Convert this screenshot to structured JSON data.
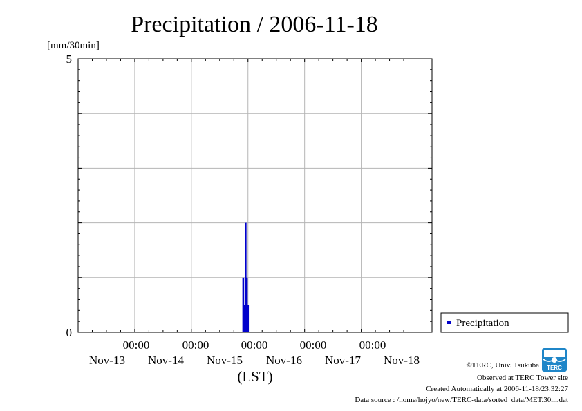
{
  "title": "Precipitation / 2006-11-18",
  "unit_label": "[mm/30min]",
  "chart_data": {
    "type": "bar",
    "title": "Precipitation / 2006-11-18",
    "ylabel": "[mm/30min]",
    "xlabel": "(LST)",
    "ylim": [
      0,
      5
    ],
    "yticks": [
      "0",
      "5"
    ],
    "xrange_hours": [
      -24,
      126
    ],
    "x_time_labels": [
      "00:00",
      "00:00",
      "00:00",
      "00:00",
      "00:00"
    ],
    "x_date_labels": [
      "Nov-13",
      "Nov-14",
      "Nov-15",
      "Nov-16",
      "Nov-17",
      "Nov-18"
    ],
    "grid": true,
    "legend_position": "right",
    "series": [
      {
        "name": "Precipitation",
        "color": "#0000cc",
        "points": [
          {
            "x": "2006-11-15 22:00",
            "y": 1.0
          },
          {
            "x": "2006-11-15 22:30",
            "y": 0.5
          },
          {
            "x": "2006-11-15 23:00",
            "y": 2.0
          },
          {
            "x": "2006-11-15 23:30",
            "y": 1.0
          },
          {
            "x": "2006-11-16 00:00",
            "y": 0.5
          }
        ]
      }
    ]
  },
  "legend": {
    "label": "Precipitation"
  },
  "footer": {
    "copyright": "©TERC, Univ. Tsukuba",
    "observed": "Observed at TERC Tower site",
    "created": "Created Automatically at 2006-11-18/23:32:27",
    "source": "Data source : /home/hojyo/new/TERC-data/sorted_data/MET.30m.dat"
  },
  "logo_text": "TERC"
}
